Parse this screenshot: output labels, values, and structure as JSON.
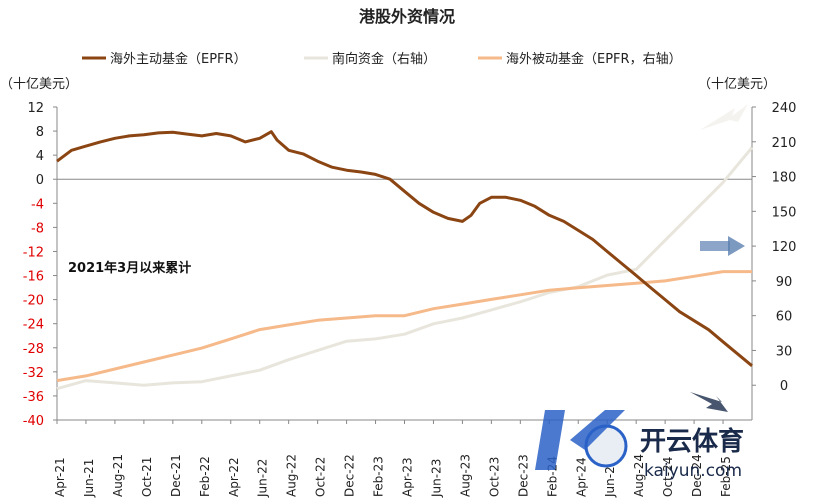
{
  "chart_data": {
    "type": "line",
    "title": "港股外资情况",
    "left_unit": "（十亿美元）",
    "right_unit": "（十亿美元）",
    "annotation": "2021年3月以来累计",
    "left_axis": {
      "min": -40,
      "max": 12,
      "ticks": [
        12,
        8,
        4,
        0,
        -4,
        -8,
        -12,
        -16,
        -20,
        -24,
        -28,
        -32,
        -36,
        -40
      ]
    },
    "right_axis": {
      "min": -30,
      "max": 240,
      "ticks": [
        240,
        210,
        180,
        150,
        120,
        90,
        60,
        30,
        0
      ]
    },
    "x_ticks": [
      "Apr-21",
      "Jun-21",
      "Aug-21",
      "Oct-21",
      "Dec-21",
      "Feb-22",
      "Apr-22",
      "Jun-22",
      "Aug-22",
      "Oct-22",
      "Dec-22",
      "Feb-23",
      "Apr-23",
      "Jun-23",
      "Aug-23",
      "Oct-23",
      "Dec-23",
      "Feb-24",
      "Apr-24",
      "Jun-24",
      "Aug-24",
      "Oct-24",
      "Dec-24",
      "Feb-25"
    ],
    "x_range_months": [
      0,
      24
    ],
    "series": [
      {
        "name": "海外主动基金（EPFR）",
        "axis": "left",
        "color": "#8B4513",
        "points": [
          [
            0,
            3
          ],
          [
            0.5,
            4.8
          ],
          [
            1,
            5.5
          ],
          [
            1.5,
            6.2
          ],
          [
            2,
            6.8
          ],
          [
            2.5,
            7.2
          ],
          [
            3,
            7.4
          ],
          [
            3.5,
            7.7
          ],
          [
            4,
            7.8
          ],
          [
            4.5,
            7.5
          ],
          [
            5,
            7.2
          ],
          [
            5.5,
            7.6
          ],
          [
            6,
            7.2
          ],
          [
            6.5,
            6.2
          ],
          [
            7,
            6.8
          ],
          [
            7.4,
            7.9
          ],
          [
            7.6,
            6.5
          ],
          [
            8,
            4.8
          ],
          [
            8.5,
            4.2
          ],
          [
            9,
            3
          ],
          [
            9.5,
            2
          ],
          [
            10,
            1.5
          ],
          [
            10.5,
            1.2
          ],
          [
            11,
            0.8
          ],
          [
            11.5,
            0
          ],
          [
            12,
            -2
          ],
          [
            12.5,
            -4
          ],
          [
            13,
            -5.5
          ],
          [
            13.5,
            -6.5
          ],
          [
            14,
            -7
          ],
          [
            14.3,
            -6
          ],
          [
            14.6,
            -4
          ],
          [
            15,
            -3
          ],
          [
            15.5,
            -3
          ],
          [
            16,
            -3.5
          ],
          [
            16.5,
            -4.5
          ],
          [
            17,
            -6
          ],
          [
            17.5,
            -7
          ],
          [
            18,
            -8.5
          ],
          [
            18.5,
            -10
          ],
          [
            19,
            -12
          ],
          [
            19.5,
            -14
          ],
          [
            20,
            -16
          ],
          [
            20.5,
            -18
          ],
          [
            21,
            -20
          ],
          [
            21.5,
            -22
          ],
          [
            22,
            -23.5
          ],
          [
            22.5,
            -25
          ],
          [
            23,
            -27
          ],
          [
            23.5,
            -29
          ],
          [
            24,
            -31
          ]
        ]
      },
      {
        "name": "南向资金（右轴）",
        "axis": "right",
        "color": "#e8e6dc",
        "points": [
          [
            0,
            -3
          ],
          [
            1,
            4
          ],
          [
            2,
            2
          ],
          [
            3,
            0
          ],
          [
            4,
            2
          ],
          [
            5,
            3
          ],
          [
            6,
            8
          ],
          [
            7,
            13
          ],
          [
            8,
            22
          ],
          [
            9,
            30
          ],
          [
            10,
            38
          ],
          [
            11,
            40
          ],
          [
            12,
            44
          ],
          [
            13,
            53
          ],
          [
            14,
            58
          ],
          [
            15,
            65
          ],
          [
            16,
            72
          ],
          [
            17,
            80
          ],
          [
            18,
            85
          ],
          [
            19,
            95
          ],
          [
            20,
            100
          ],
          [
            21,
            125
          ],
          [
            22,
            150
          ],
          [
            23,
            175
          ],
          [
            24,
            205
          ]
        ]
      },
      {
        "name": "海外被动基金（EPFR，右轴）",
        "axis": "right",
        "color": "#f5b98a",
        "points": [
          [
            0,
            4
          ],
          [
            1,
            8
          ],
          [
            2,
            14
          ],
          [
            3,
            20
          ],
          [
            4,
            26
          ],
          [
            5,
            32
          ],
          [
            6,
            40
          ],
          [
            7,
            48
          ],
          [
            8,
            52
          ],
          [
            9,
            56
          ],
          [
            10,
            58
          ],
          [
            11,
            60
          ],
          [
            12,
            60
          ],
          [
            13,
            66
          ],
          [
            14,
            70
          ],
          [
            15,
            74
          ],
          [
            16,
            78
          ],
          [
            17,
            82
          ],
          [
            18,
            84
          ],
          [
            19,
            86
          ],
          [
            20,
            88
          ],
          [
            21,
            90
          ],
          [
            22,
            94
          ],
          [
            23,
            98
          ],
          [
            24,
            98
          ]
        ]
      }
    ],
    "legend_position": "top-center"
  },
  "watermark": {
    "brand": "开云体育",
    "site": "kaiyun.com"
  }
}
